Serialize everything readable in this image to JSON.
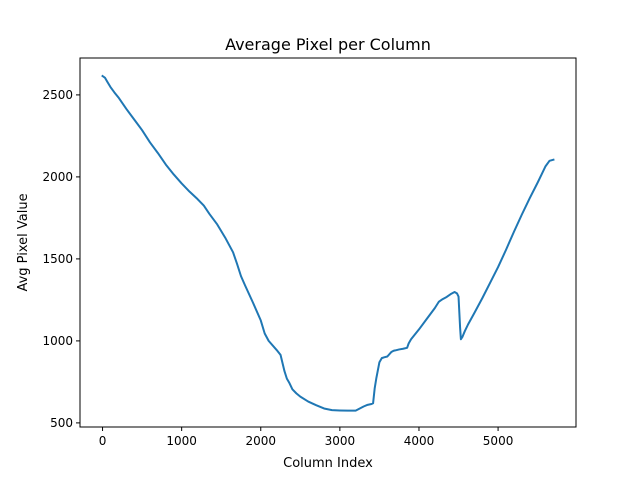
{
  "chart_data": {
    "type": "line",
    "title": "Average Pixel per Column",
    "xlabel": "Column Index",
    "ylabel": "Avg Pixel Value",
    "xlim": [
      -285,
      5985
    ],
    "ylim": [
      475,
      2725
    ],
    "xticks": [
      0,
      1000,
      2000,
      3000,
      4000,
      5000
    ],
    "yticks": [
      500,
      1000,
      1500,
      2000,
      2500
    ],
    "grid": false,
    "legend": "none",
    "series": [
      {
        "color": "#1f77b4",
        "x": [
          0,
          30,
          60,
          100,
          150,
          200,
          250,
          300,
          400,
          500,
          600,
          700,
          800,
          900,
          1000,
          1100,
          1200,
          1280,
          1350,
          1450,
          1550,
          1650,
          1700,
          1750,
          1800,
          1900,
          2000,
          2050,
          2100,
          2200,
          2250,
          2300,
          2330,
          2360,
          2400,
          2450,
          2500,
          2600,
          2700,
          2800,
          2900,
          3000,
          3100,
          3200,
          3300,
          3350,
          3400,
          3420,
          3440,
          3460,
          3500,
          3530,
          3560,
          3600,
          3650,
          3680,
          3700,
          3750,
          3800,
          3850,
          3870,
          3900,
          4000,
          4100,
          4200,
          4250,
          4300,
          4350,
          4400,
          4450,
          4480,
          4500,
          4520,
          4530,
          4550,
          4580,
          4620,
          4700,
          4800,
          4900,
          5000,
          5100,
          5200,
          5300,
          5400,
          5500,
          5550,
          5600,
          5650,
          5700
        ],
        "y": [
          2615,
          2605,
          2580,
          2548,
          2515,
          2485,
          2450,
          2415,
          2350,
          2285,
          2210,
          2145,
          2075,
          2015,
          1960,
          1910,
          1865,
          1825,
          1775,
          1710,
          1630,
          1540,
          1470,
          1395,
          1340,
          1235,
          1125,
          1045,
          1000,
          945,
          915,
          815,
          770,
          745,
          705,
          680,
          660,
          630,
          608,
          588,
          578,
          576,
          575,
          575,
          600,
          610,
          615,
          620,
          710,
          770,
          870,
          895,
          900,
          905,
          932,
          940,
          942,
          948,
          952,
          958,
          985,
          1010,
          1070,
          1135,
          1200,
          1238,
          1255,
          1268,
          1285,
          1298,
          1290,
          1270,
          1080,
          1010,
          1025,
          1060,
          1100,
          1170,
          1260,
          1355,
          1450,
          1555,
          1665,
          1770,
          1870,
          1965,
          2015,
          2065,
          2098,
          2105
        ]
      }
    ]
  }
}
